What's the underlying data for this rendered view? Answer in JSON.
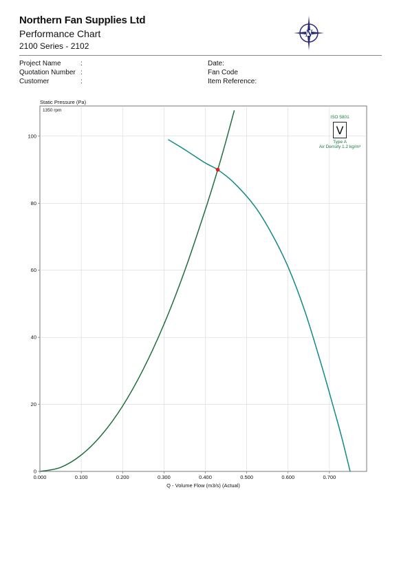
{
  "header": {
    "company": "Northern Fan Supplies Ltd",
    "doc_title": "Performance Chart",
    "series": "2100 Series - 2102"
  },
  "info": {
    "project_name_label": "Project Name",
    "quotation_label": "Quotation Number",
    "customer_label": "Customer",
    "colon": ":",
    "date_label": "Date:",
    "fan_code_label": "Fan Code",
    "item_ref_label": "Item Reference:"
  },
  "legend": {
    "iso": "ISO 5801",
    "type": "Type A",
    "density": "Air Density 1.2 kg/m³"
  },
  "colors": {
    "fan_curve": "#0f8a86",
    "system_curve": "#1e6e3c",
    "operating_point": "#e01d1d",
    "grid": "#d8d8d8"
  },
  "chart_data": {
    "type": "line",
    "ylabel": "Static Pressure (Pa)",
    "xlabel": "Q - Volume Flow (m3/s) (Actual)",
    "annotation": "1350 rpm",
    "xlim": [
      0,
      0.79
    ],
    "ylim": [
      0,
      109
    ],
    "xticks": [
      "0.000",
      "0.100",
      "0.200",
      "0.300",
      "0.400",
      "0.500",
      "0.600",
      "0.700"
    ],
    "yticks": [
      "0",
      "20",
      "40",
      "60",
      "80",
      "100"
    ],
    "grid": true,
    "series": [
      {
        "kind": "fan",
        "x": [
          0.31,
          0.35,
          0.4,
          0.43,
          0.47,
          0.52,
          0.56,
          0.6,
          0.64,
          0.68,
          0.71,
          0.73,
          0.75
        ],
        "y": [
          99,
          96,
          92,
          90,
          86,
          79,
          71,
          61,
          48,
          32,
          19,
          10,
          0
        ]
      },
      {
        "kind": "system",
        "x": [
          0.0,
          0.05,
          0.1,
          0.15,
          0.2,
          0.25,
          0.3,
          0.35,
          0.4,
          0.43,
          0.45,
          0.47
        ],
        "y": [
          0,
          1.2,
          4.9,
          11.0,
          19.5,
          30.5,
          43.9,
          59.8,
          78.1,
          90.0,
          98.6,
          107.7
        ]
      }
    ],
    "operating_point": {
      "x": 0.43,
      "y": 90
    }
  }
}
